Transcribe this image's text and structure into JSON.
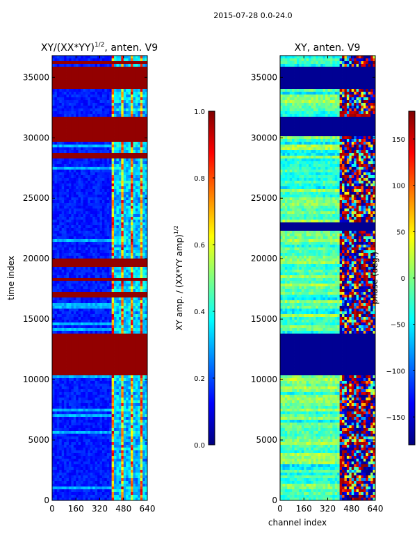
{
  "suptitle": "2015-07-28 0.0-24.0",
  "colormap": [
    "#00007f",
    "#0000ff",
    "#007fff",
    "#00ffff",
    "#7fff7f",
    "#ffff00",
    "#ff7f00",
    "#ff0000",
    "#7f0000"
  ],
  "chart_data": [
    {
      "type": "heatmap",
      "title_main": "XY/(XX*YY)",
      "title_sup": "1/2",
      "title_tail": ", anten. V9",
      "xlabel": "",
      "ylabel": "time index",
      "xlim": [
        0,
        640
      ],
      "ylim": [
        0,
        36800
      ],
      "xticks": [
        0,
        160,
        320,
        480,
        640
      ],
      "xtick_labels": [
        "0",
        "160",
        "320",
        "480",
        "640"
      ],
      "yticks": [
        0,
        5000,
        10000,
        15000,
        20000,
        25000,
        30000,
        35000
      ],
      "ytick_labels": [
        "0",
        "5000",
        "10000",
        "15000",
        "20000",
        "25000",
        "30000",
        "35000"
      ],
      "colorbar": {
        "label_main": "XY amp. / (XX*YY amp)",
        "label_sup": "1/2",
        "range": [
          0.0,
          1.0
        ],
        "ticks": [
          0.0,
          0.2,
          0.4,
          0.6,
          0.8,
          1.0
        ],
        "tick_labels": [
          "0.0",
          "0.2",
          "0.4",
          "0.6",
          "0.8",
          "1.0"
        ]
      },
      "saturated_row_ranges": [
        [
          10300,
          13900
        ],
        [
          16900,
          17300
        ],
        [
          17600,
          17800
        ],
        [
          18100,
          18500
        ],
        [
          19300,
          19900
        ],
        [
          28200,
          28700
        ],
        [
          29700,
          30100
        ],
        [
          30200,
          31800
        ],
        [
          34000,
          35800
        ],
        [
          36000,
          36300
        ]
      ],
      "high_channel_ranges": [
        [
          400,
          640
        ]
      ],
      "background_value": 0.15
    },
    {
      "type": "heatmap",
      "title_main": "XY, anten. V9",
      "title_sup": "",
      "title_tail": "",
      "xlabel": "channel index",
      "ylabel": "",
      "xlim": [
        0,
        640
      ],
      "ylim": [
        0,
        36800
      ],
      "xticks": [
        0,
        160,
        320,
        480,
        640
      ],
      "xtick_labels": [
        "0",
        "160",
        "320",
        "480",
        "640"
      ],
      "yticks": [
        0,
        5000,
        10000,
        15000,
        20000,
        25000,
        30000,
        35000
      ],
      "ytick_labels": [
        "0",
        "5000",
        "10000",
        "15000",
        "20000",
        "25000",
        "30000",
        "35000"
      ],
      "colorbar": {
        "label_main": "phase (deg.)",
        "label_sup": "",
        "range": [
          -180,
          180
        ],
        "ticks": [
          -150,
          -100,
          -50,
          0,
          50,
          100,
          150
        ],
        "tick_labels": [
          "−150",
          "−100",
          "−50",
          "0",
          "50",
          "100",
          "150"
        ]
      },
      "masked_row_ranges": [
        [
          10300,
          13900
        ],
        [
          30200,
          31800
        ],
        [
          34000,
          35800
        ],
        [
          22300,
          22900
        ]
      ],
      "phase_noise_channel_ranges": [
        [
          400,
          640
        ]
      ]
    }
  ]
}
